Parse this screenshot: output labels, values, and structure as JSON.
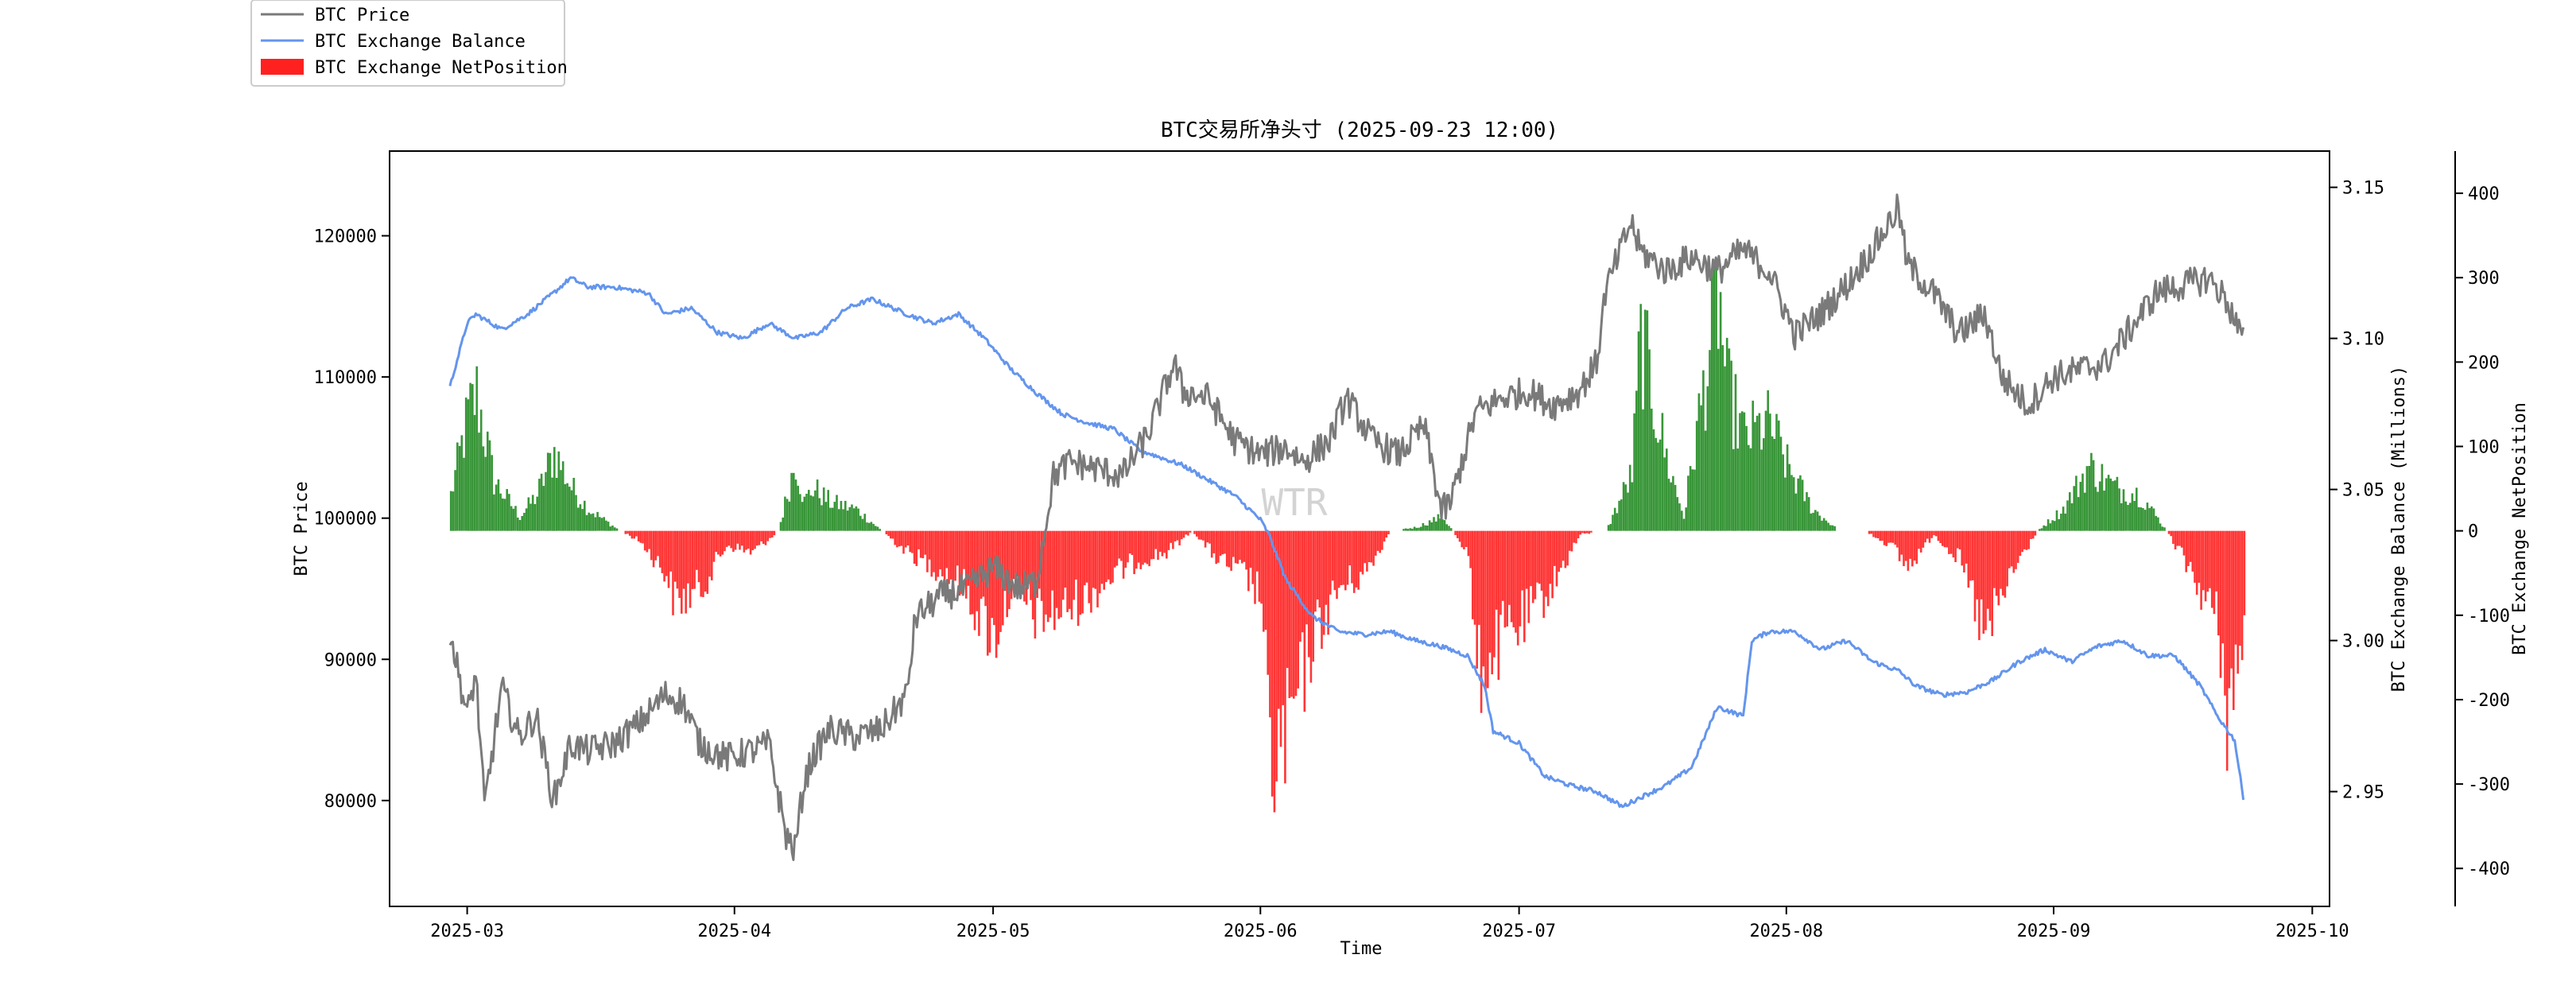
{
  "chart_data": {
    "type": "combo-line-bar",
    "title": "BTC交易所净头寸 (2025-09-23 12:00)",
    "xlabel": "Time",
    "ylabel_left": "BTC Price",
    "ylabel_right1": "BTC Exchange Balance (Millions)",
    "ylabel_right2": "BTC Exchange NetPosition",
    "watermark": "WTR",
    "x_ticks": [
      "2025-03",
      "2025-04",
      "2025-05",
      "2025-06",
      "2025-07",
      "2025-08",
      "2025-09",
      "2025-10"
    ],
    "x_range": [
      "2025-02-20",
      "2025-10-03"
    ],
    "left_axis": {
      "ylim": [
        72500,
        126000
      ],
      "ticks": [
        80000,
        90000,
        100000,
        110000,
        120000
      ]
    },
    "right1_axis": {
      "ylim": [
        2.912,
        3.162
      ],
      "ticks": [
        2.95,
        3.0,
        3.05,
        3.1,
        3.15
      ],
      "tick_labels": [
        "2.95",
        "3.00",
        "3.05",
        "3.10",
        "3.15"
      ]
    },
    "right2_axis": {
      "ylim": [
        -445,
        450
      ],
      "ticks": [
        -400,
        -300,
        -200,
        -100,
        0,
        100,
        200,
        300,
        400
      ]
    },
    "legend": {
      "placement": "top-left, outside plot",
      "entries": [
        {
          "label": "BTC Price",
          "kind": "line",
          "color": "#7a7a7a"
        },
        {
          "label": "BTC Exchange Balance",
          "kind": "line",
          "color": "#6495ed"
        },
        {
          "label": "BTC Exchange NetPosition",
          "kind": "bar",
          "color": "#ff2020"
        }
      ]
    },
    "colors": {
      "price": "#7a7a7a",
      "balance": "#6495ed",
      "net_positive": "#228b22",
      "net_negative": "#ff2020"
    },
    "series": [
      {
        "name": "BTC Price",
        "axis": "left",
        "x": [
          "2025-02-27",
          "2025-03-01",
          "2025-03-02",
          "2025-03-03",
          "2025-03-05",
          "2025-03-07",
          "2025-03-09",
          "2025-03-11",
          "2025-03-13",
          "2025-03-15",
          "2025-03-18",
          "2025-03-21",
          "2025-03-24",
          "2025-03-26",
          "2025-03-28",
          "2025-03-31",
          "2025-04-03",
          "2025-04-05",
          "2025-04-07",
          "2025-04-08",
          "2025-04-09",
          "2025-04-10",
          "2025-04-12",
          "2025-04-15",
          "2025-04-18",
          "2025-04-21",
          "2025-04-22",
          "2025-04-25",
          "2025-04-28",
          "2025-05-01",
          "2025-05-04",
          "2025-05-06",
          "2025-05-08",
          "2025-05-10",
          "2025-05-13",
          "2025-05-16",
          "2025-05-19",
          "2025-05-22",
          "2025-05-23",
          "2025-05-26",
          "2025-05-29",
          "2025-06-01",
          "2025-06-04",
          "2025-06-06",
          "2025-06-09",
          "2025-06-11",
          "2025-06-14",
          "2025-06-17",
          "2025-06-20",
          "2025-06-22",
          "2025-06-23",
          "2025-06-26",
          "2025-06-29",
          "2025-07-02",
          "2025-07-05",
          "2025-07-08",
          "2025-07-10",
          "2025-07-11",
          "2025-07-14",
          "2025-07-15",
          "2025-07-18",
          "2025-07-21",
          "2025-07-24",
          "2025-07-27",
          "2025-07-30",
          "2025-08-02",
          "2025-08-05",
          "2025-08-08",
          "2025-08-11",
          "2025-08-14",
          "2025-08-15",
          "2025-08-18",
          "2025-08-21",
          "2025-08-24",
          "2025-08-26",
          "2025-08-29",
          "2025-09-01",
          "2025-09-04",
          "2025-09-07",
          "2025-09-10",
          "2025-09-13",
          "2025-09-16",
          "2025-09-19",
          "2025-09-21",
          "2025-09-23"
        ],
        "values": [
          92000,
          86000,
          89000,
          79500,
          88000,
          84500,
          86000,
          80000,
          84000,
          83500,
          84000,
          85500,
          87500,
          87000,
          84000,
          83000,
          83500,
          84000,
          77500,
          76500,
          81000,
          83000,
          85000,
          84500,
          85000,
          87500,
          93000,
          94500,
          95000,
          96500,
          95000,
          95500,
          103000,
          104000,
          103500,
          103000,
          106000,
          111000,
          109000,
          108500,
          105500,
          104500,
          105000,
          104000,
          105500,
          108500,
          105500,
          104500,
          106500,
          100500,
          101000,
          107500,
          108500,
          109000,
          108000,
          109000,
          111000,
          116000,
          121000,
          119000,
          117500,
          118500,
          117500,
          119000,
          117500,
          113000,
          114500,
          116500,
          119000,
          122000,
          118000,
          116000,
          113000,
          114500,
          110000,
          108000,
          110000,
          110500,
          111000,
          113500,
          116000,
          116500,
          117000,
          115500,
          112500
        ]
      },
      {
        "name": "BTC Exchange Balance",
        "axis": "right1",
        "x": [
          "2025-02-27",
          "2025-03-01",
          "2025-03-02",
          "2025-03-05",
          "2025-03-08",
          "2025-03-11",
          "2025-03-13",
          "2025-03-15",
          "2025-03-18",
          "2025-03-22",
          "2025-03-24",
          "2025-03-27",
          "2025-03-30",
          "2025-04-02",
          "2025-04-05",
          "2025-04-08",
          "2025-04-11",
          "2025-04-14",
          "2025-04-17",
          "2025-04-21",
          "2025-04-24",
          "2025-04-27",
          "2025-04-30",
          "2025-05-03",
          "2025-05-06",
          "2025-05-09",
          "2025-05-12",
          "2025-05-15",
          "2025-05-18",
          "2025-05-21",
          "2025-05-23",
          "2025-05-26",
          "2025-05-29",
          "2025-06-01",
          "2025-06-02",
          "2025-06-04",
          "2025-06-07",
          "2025-06-10",
          "2025-06-13",
          "2025-06-16",
          "2025-06-19",
          "2025-06-22",
          "2025-06-25",
          "2025-06-27",
          "2025-06-28",
          "2025-07-01",
          "2025-07-04",
          "2025-07-07",
          "2025-07-10",
          "2025-07-13",
          "2025-07-15",
          "2025-07-18",
          "2025-07-21",
          "2025-07-24",
          "2025-07-27",
          "2025-07-28",
          "2025-07-30",
          "2025-08-02",
          "2025-08-05",
          "2025-08-08",
          "2025-08-11",
          "2025-08-14",
          "2025-08-16",
          "2025-08-19",
          "2025-08-22",
          "2025-08-25",
          "2025-08-28",
          "2025-08-31",
          "2025-09-03",
          "2025-09-06",
          "2025-09-09",
          "2025-09-12",
          "2025-09-15",
          "2025-09-18",
          "2025-09-20",
          "2025-09-22",
          "2025-09-23"
        ],
        "values": [
          3.084,
          3.105,
          3.108,
          3.103,
          3.108,
          3.115,
          3.12,
          3.117,
          3.117,
          3.115,
          3.108,
          3.11,
          3.102,
          3.1,
          3.105,
          3.1,
          3.102,
          3.11,
          3.113,
          3.108,
          3.105,
          3.108,
          3.1,
          3.09,
          3.082,
          3.075,
          3.072,
          3.07,
          3.063,
          3.06,
          3.058,
          3.053,
          3.048,
          3.04,
          3.035,
          3.02,
          3.008,
          3.003,
          3.002,
          3.003,
          3.0,
          2.998,
          2.995,
          2.985,
          2.97,
          2.966,
          2.955,
          2.952,
          2.95,
          2.945,
          2.948,
          2.952,
          2.958,
          2.978,
          2.975,
          3.0,
          3.003,
          3.003,
          2.997,
          3.0,
          2.993,
          2.99,
          2.985,
          2.982,
          2.983,
          2.987,
          2.993,
          2.997,
          2.993,
          2.998,
          3.0,
          2.995,
          2.995,
          2.985,
          2.975,
          2.967,
          2.948
        ]
      },
      {
        "name": "BTC Exchange NetPosition",
        "axis": "right2",
        "type": "bar",
        "x": [
          "2025-02-27",
          "2025-03-01",
          "2025-03-02",
          "2025-03-04",
          "2025-03-07",
          "2025-03-09",
          "2025-03-11",
          "2025-03-13",
          "2025-03-15",
          "2025-03-18",
          "2025-03-21",
          "2025-03-24",
          "2025-03-25",
          "2025-03-28",
          "2025-03-31",
          "2025-04-03",
          "2025-04-06",
          "2025-04-08",
          "2025-04-09",
          "2025-04-10",
          "2025-04-12",
          "2025-04-15",
          "2025-04-18",
          "2025-04-21",
          "2025-04-24",
          "2025-04-27",
          "2025-04-30",
          "2025-05-01",
          "2025-05-03",
          "2025-05-06",
          "2025-05-09",
          "2025-05-12",
          "2025-05-15",
          "2025-05-18",
          "2025-05-21",
          "2025-05-24",
          "2025-05-27",
          "2025-05-30",
          "2025-06-01",
          "2025-06-02",
          "2025-06-04",
          "2025-06-07",
          "2025-06-10",
          "2025-06-13",
          "2025-06-16",
          "2025-06-19",
          "2025-06-22",
          "2025-06-25",
          "2025-06-26",
          "2025-06-29",
          "2025-07-02",
          "2025-07-05",
          "2025-07-08",
          "2025-07-11",
          "2025-07-14",
          "2025-07-15",
          "2025-07-18",
          "2025-07-20",
          "2025-07-24",
          "2025-07-25",
          "2025-07-27",
          "2025-07-30",
          "2025-08-01",
          "2025-08-04",
          "2025-08-07",
          "2025-08-10",
          "2025-08-13",
          "2025-08-15",
          "2025-08-18",
          "2025-08-21",
          "2025-08-24",
          "2025-08-27",
          "2025-08-30",
          "2025-09-02",
          "2025-09-05",
          "2025-09-08",
          "2025-09-11",
          "2025-09-14",
          "2025-09-17",
          "2025-09-20",
          "2025-09-21",
          "2025-09-23"
        ],
        "values": [
          50,
          160,
          190,
          70,
          20,
          50,
          110,
          60,
          30,
          5,
          -15,
          -60,
          -100,
          -80,
          -20,
          -30,
          0,
          100,
          40,
          60,
          40,
          30,
          0,
          -30,
          -50,
          -70,
          -130,
          -150,
          -80,
          -120,
          -110,
          -90,
          -60,
          -40,
          -30,
          0,
          -40,
          -60,
          -90,
          -330,
          -290,
          -150,
          -80,
          -60,
          0,
          5,
          20,
          -30,
          -200,
          -150,
          -120,
          -70,
          -5,
          0,
          80,
          270,
          100,
          20,
          330,
          200,
          130,
          150,
          90,
          30,
          0,
          0,
          -20,
          -50,
          -5,
          -40,
          -150,
          -60,
          0,
          30,
          90,
          60,
          50,
          0,
          -60,
          -130,
          -250,
          -150
        ]
      }
    ]
  }
}
